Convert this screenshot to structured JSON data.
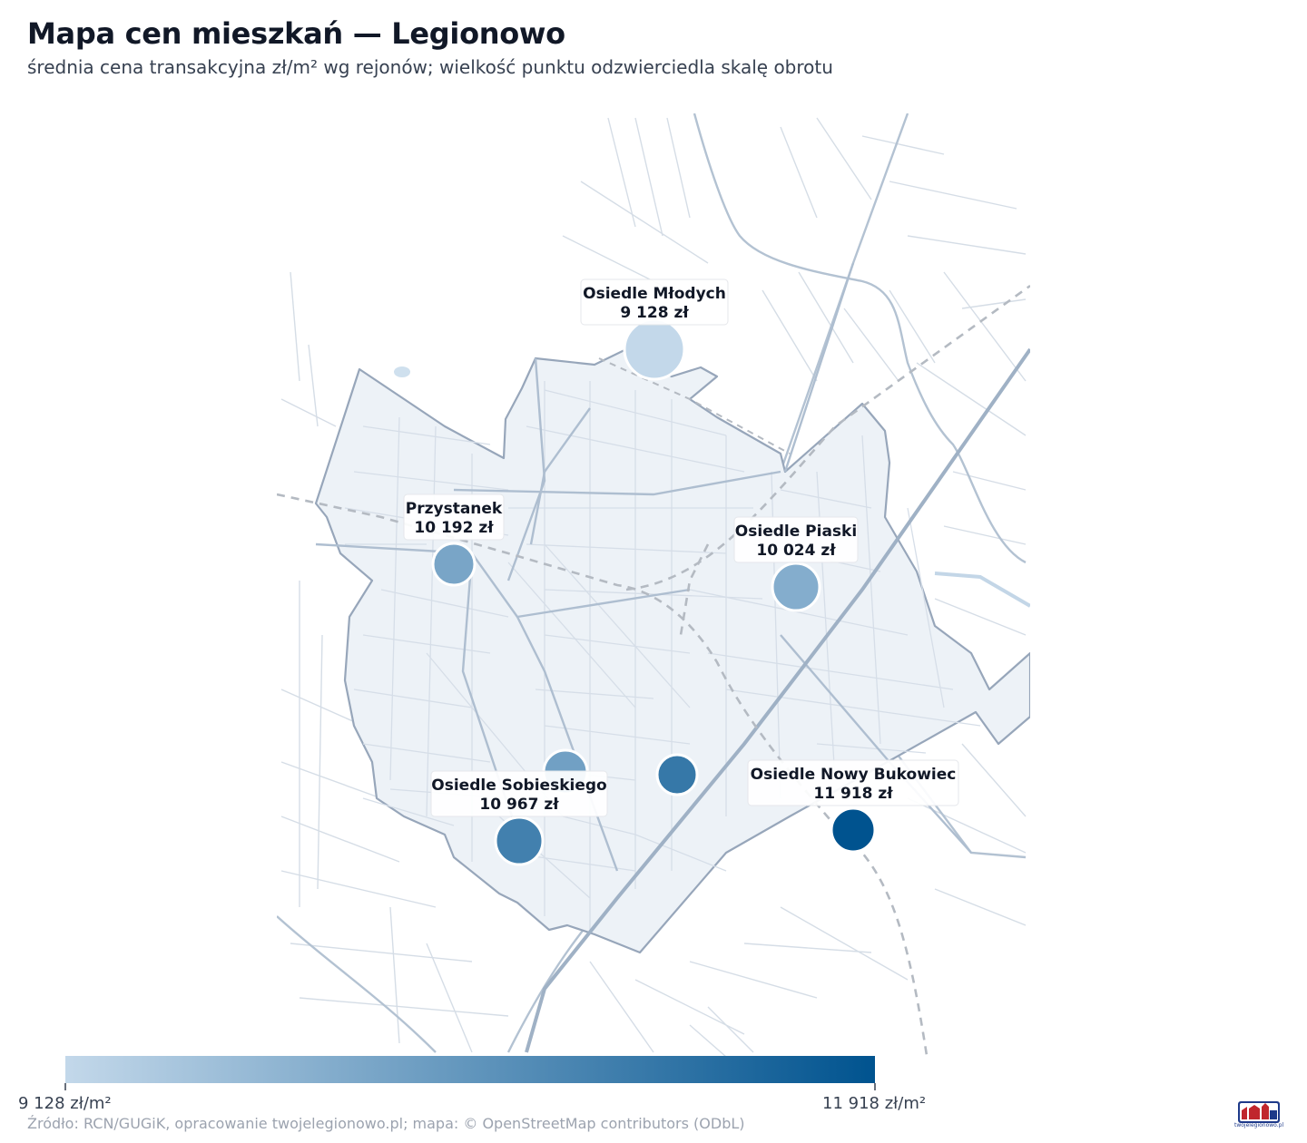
{
  "header": {
    "title": "Mapa cen mieszkań — Legionowo",
    "subtitle": "średnia cena transakcyjna zł/m² wg rejonów; wielkość punktu odzwierciedla skalę obrotu"
  },
  "districts": [
    {
      "name": "Osiedle Młodych",
      "price_label": "9 128 zł",
      "price": 9128,
      "labeled": true
    },
    {
      "name": "Przystanek",
      "price_label": "10 192 zł",
      "price": 10192,
      "labeled": true
    },
    {
      "name": "Osiedle Piaski",
      "price_label": "10 024 zł",
      "price": 10024,
      "labeled": true
    },
    {
      "name": "Osiedle Sobieskiego",
      "price_label": "10 967 zł",
      "price": 10967,
      "labeled": true
    },
    {
      "name": "Osiedle Nowy Bukowiec",
      "price_label": "11 918 zł",
      "price": 11918,
      "labeled": true
    },
    {
      "name": "",
      "price": 10300,
      "labeled": false
    },
    {
      "name": "",
      "price": 11150,
      "labeled": false
    }
  ],
  "legend": {
    "min_label": "9 128 zł/m²",
    "max_label": "11 918 zł/m²",
    "min_value": 9128,
    "max_value": 11918,
    "color_low": "#c3d8ea",
    "color_high": "#00538f"
  },
  "source": "Źródło: RCN/GUGiK, opracowanie twojelegionowo.pl; mapa: © OpenStreetMap contributors (ODbL)",
  "logo": {
    "caption": "twojelegionowo.pl",
    "icon": "twojelegionowo-logo-icon"
  },
  "colors": {
    "city_fill": "#edf2f7",
    "city_border": "#97a6ba",
    "road_major": "#a9b9ca",
    "road_minor": "#d5dde6",
    "rail": "#b4bac2"
  }
}
